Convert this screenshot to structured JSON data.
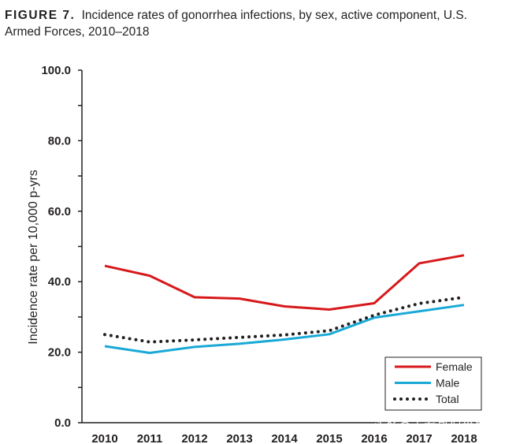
{
  "figure": {
    "label": "FIGURE 7.",
    "caption": "Incidence rates of gonorrhea infections, by sex, active component, U.S. Armed Forces, 2010–2018"
  },
  "watermark": "头条@大龙哥侃世界",
  "chart_data": {
    "type": "line",
    "title": "Incidence rates of gonorrhea infections, by sex, active component, U.S. Armed Forces, 2010–2018",
    "xlabel": "",
    "ylabel": "Incidence rate per 10,000 p-yrs",
    "x": [
      "2010",
      "2011",
      "2012",
      "2013",
      "2014",
      "2015",
      "2016",
      "2017",
      "2018"
    ],
    "ylim": [
      0,
      100
    ],
    "yticks": [
      0,
      20,
      40,
      60,
      80,
      100
    ],
    "ytick_labels": [
      "0.0",
      "20.0",
      "40.0",
      "60.0",
      "80.0",
      "100.0"
    ],
    "grid": false,
    "legend_position": "bottom-right",
    "series": [
      {
        "name": "Female",
        "color": "#d7191c",
        "style": "solid",
        "values": [
          44.5,
          41.7,
          35.6,
          35.2,
          33.0,
          32.1,
          33.9,
          45.2,
          47.5
        ]
      },
      {
        "name": "Male",
        "color": "#1aa9d6",
        "style": "solid",
        "values": [
          21.7,
          19.8,
          21.5,
          22.4,
          23.6,
          25.1,
          29.8,
          31.6,
          33.4
        ]
      },
      {
        "name": "Total",
        "color": "#231f20",
        "style": "dotted",
        "values": [
          25.0,
          22.9,
          23.5,
          24.2,
          24.9,
          26.1,
          30.5,
          33.8,
          35.6
        ]
      }
    ]
  }
}
